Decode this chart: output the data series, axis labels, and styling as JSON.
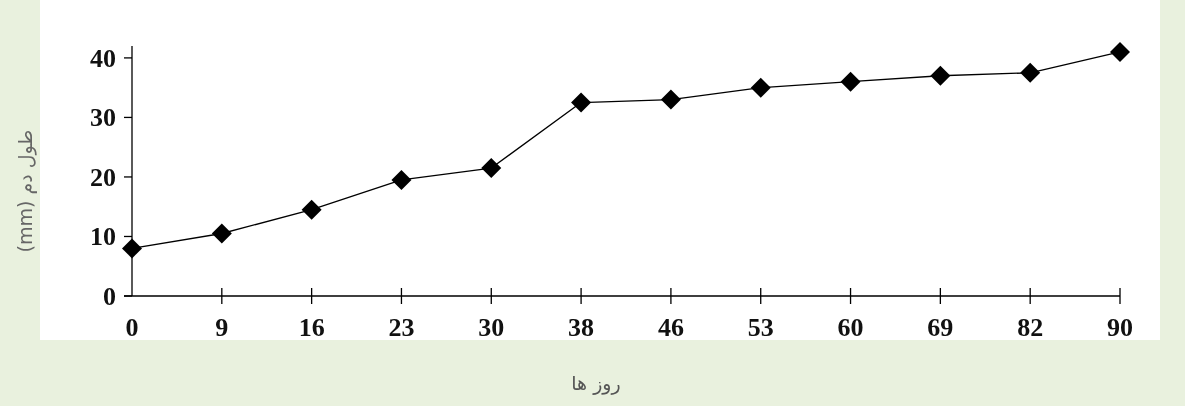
{
  "chart_data": {
    "type": "line",
    "xlabel": "روز ها",
    "ylabel": "طول دم (mm)",
    "categories": [
      "0",
      "9",
      "16",
      "23",
      "30",
      "38",
      "46",
      "53",
      "60",
      "69",
      "82",
      "90"
    ],
    "series": [
      {
        "color": "#000000",
        "values": [
          8,
          10.5,
          14.5,
          19.5,
          21.5,
          32.5,
          33,
          35,
          36,
          37,
          37.5,
          41
        ]
      }
    ],
    "ylim": [
      0,
      42
    ],
    "yticks": [
      0,
      10,
      20,
      30,
      40
    ],
    "marker": "diamond",
    "line_style": "solid",
    "grid": false
  }
}
